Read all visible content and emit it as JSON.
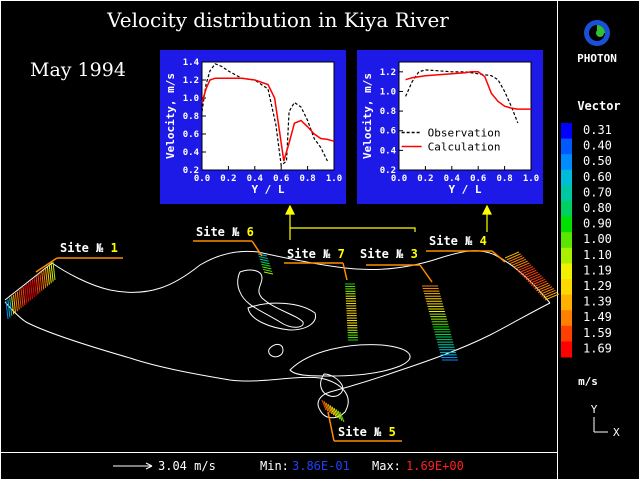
{
  "title": "Velocity distribution in Kiya River",
  "date_label": "May 1994",
  "brand": {
    "name": "PHOTON",
    "logo": "photon-logo-icon"
  },
  "legend": {
    "title": "Vector",
    "unit": "m/s",
    "levels": [
      "0.31",
      "0.40",
      "0.50",
      "0.60",
      "0.70",
      "0.80",
      "0.90",
      "1.00",
      "1.10",
      "1.19",
      "1.29",
      "1.39",
      "1.49",
      "1.59",
      "1.69"
    ],
    "colors": [
      "#0000ff",
      "#0058ff",
      "#008cff",
      "#00bcd8",
      "#00c8a0",
      "#00d060",
      "#00e000",
      "#5ae600",
      "#a8f000",
      "#f0f000",
      "#ffd800",
      "#ffb000",
      "#ff8000",
      "#ff4000",
      "#ff0000"
    ]
  },
  "axes_indicator": {
    "y": "Y",
    "x": "X"
  },
  "footer": {
    "scale_value": "3.04 m/s",
    "min_label": "Min:",
    "min_value": "3.86E-01",
    "max_label": "Max:",
    "max_value": "1.69E+00",
    "min_color": "#0000ff",
    "max_color": "#ff0000"
  },
  "sites": [
    {
      "name": "Site №",
      "num": "1"
    },
    {
      "name": "Site №",
      "num": "6"
    },
    {
      "name": "Site №",
      "num": "7"
    },
    {
      "name": "Site №",
      "num": "3"
    },
    {
      "name": "Site №",
      "num": "4"
    },
    {
      "name": "Site №",
      "num": "5"
    }
  ],
  "chart_data": [
    {
      "type": "line",
      "xlabel": "Y / L",
      "ylabel": "Velocity, m/s",
      "xlim": [
        0,
        1
      ],
      "ylim": [
        0.2,
        1.4
      ],
      "xticks": [
        "0.0",
        "0.2",
        "0.4",
        "0.6",
        "0.8",
        "1.0"
      ],
      "yticks": [
        "0.2",
        "0.4",
        "0.6",
        "0.8",
        "1.0",
        "1.2",
        "1.4"
      ],
      "series": [
        {
          "style": "dashed",
          "color": "#000000",
          "x": [
            0.0,
            0.03,
            0.06,
            0.1,
            0.15,
            0.2,
            0.3,
            0.4,
            0.5,
            0.56,
            0.6,
            0.64,
            0.66,
            0.7,
            0.75,
            0.8,
            0.85,
            0.9,
            0.95
          ],
          "y": [
            0.85,
            1.15,
            1.3,
            1.38,
            1.35,
            1.3,
            1.22,
            1.2,
            1.1,
            0.7,
            0.25,
            0.3,
            0.85,
            0.95,
            0.9,
            0.75,
            0.55,
            0.45,
            0.3
          ]
        },
        {
          "style": "solid",
          "color": "#ff0000",
          "x": [
            0.0,
            0.03,
            0.06,
            0.1,
            0.2,
            0.3,
            0.4,
            0.5,
            0.55,
            0.58,
            0.62,
            0.66,
            0.7,
            0.75,
            0.8,
            0.85,
            0.9,
            0.95,
            1.0
          ],
          "y": [
            0.95,
            1.1,
            1.2,
            1.22,
            1.22,
            1.22,
            1.2,
            1.15,
            1.0,
            0.7,
            0.3,
            0.5,
            0.72,
            0.75,
            0.68,
            0.6,
            0.55,
            0.54,
            0.52
          ]
        }
      ]
    },
    {
      "type": "line",
      "xlabel": "Y / L",
      "ylabel": "Velocity, m/s",
      "xlim": [
        0,
        1
      ],
      "ylim": [
        0.2,
        1.3
      ],
      "xticks": [
        "0.0",
        "0.2",
        "0.4",
        "0.6",
        "0.8",
        "1.0"
      ],
      "yticks": [
        "0.2",
        "0.4",
        "0.6",
        "0.8",
        "1.0",
        "1.2"
      ],
      "legend": [
        "Observation",
        "Calculation"
      ],
      "series": [
        {
          "name": "Observation",
          "style": "dashed",
          "color": "#000000",
          "x": [
            0.05,
            0.1,
            0.15,
            0.2,
            0.3,
            0.4,
            0.5,
            0.6,
            0.7,
            0.75,
            0.8,
            0.85,
            0.9
          ],
          "y": [
            0.95,
            1.1,
            1.2,
            1.22,
            1.21,
            1.2,
            1.2,
            1.18,
            1.16,
            1.12,
            1.0,
            0.85,
            0.68
          ]
        },
        {
          "name": "Calculation",
          "style": "solid",
          "color": "#ff0000",
          "x": [
            0.05,
            0.1,
            0.15,
            0.2,
            0.3,
            0.4,
            0.5,
            0.55,
            0.6,
            0.65,
            0.7,
            0.75,
            0.8,
            0.85,
            0.9,
            0.95,
            1.0
          ],
          "y": [
            1.12,
            1.14,
            1.15,
            1.16,
            1.17,
            1.18,
            1.19,
            1.2,
            1.2,
            1.15,
            0.98,
            0.9,
            0.85,
            0.83,
            0.82,
            0.82,
            0.82
          ]
        }
      ]
    }
  ]
}
